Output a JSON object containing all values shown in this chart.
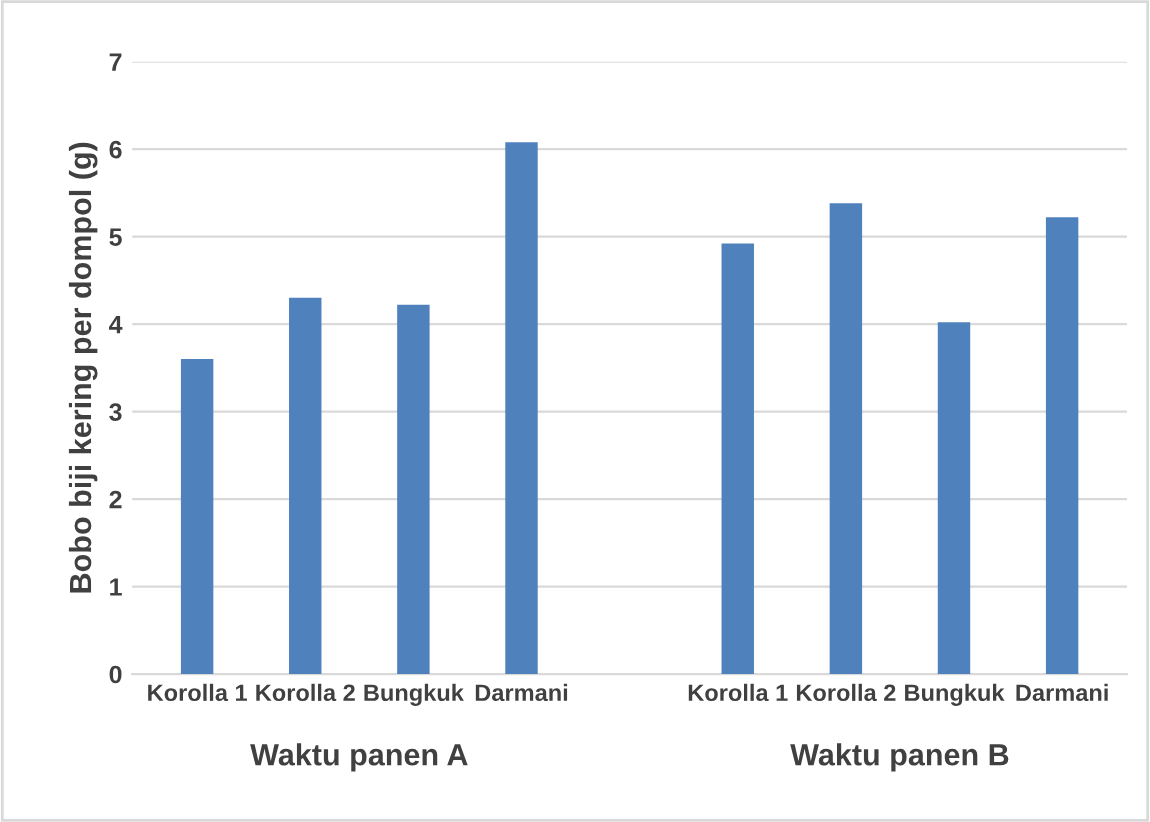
{
  "chart_data": {
    "type": "bar",
    "ylabel": "Bobo biji kering per dompol (g)",
    "categories": [
      "Korolla 1",
      "Korolla 2",
      "Bungkuk",
      "Darmani",
      null,
      "Korolla 1",
      "Korolla 2",
      "Bungkuk",
      "Darmani"
    ],
    "values": [
      3.6,
      4.3,
      4.22,
      6.08,
      null,
      4.92,
      5.38,
      4.02,
      5.22
    ],
    "color": "#4f81bd",
    "ylim": [
      0,
      7
    ],
    "yticks": [
      0,
      1,
      2,
      3,
      4,
      5,
      6,
      7
    ],
    "grid": "y",
    "annotations": [
      "Waktu panen A",
      "Waktu panen B"
    ]
  }
}
